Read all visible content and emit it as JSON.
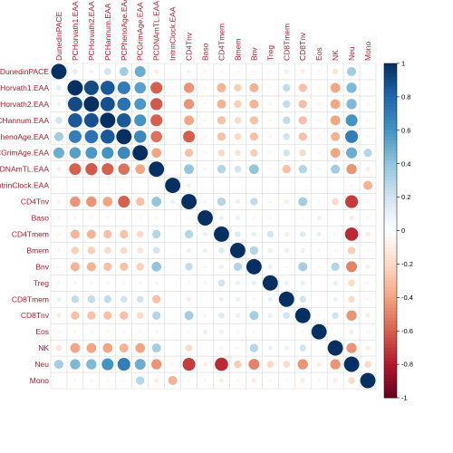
{
  "chart_data": {
    "type": "heatmap",
    "subtype": "correlation-circle",
    "labels": [
      "DunedinPACE",
      "PCHorvath1.EAA",
      "PCHorvath2.EAA",
      "PCHannum.EAA",
      "PCPhenoAge.EAA",
      "PCGrimAge.EAA",
      "PCDNAmTL.EAA",
      "IntrinClock.EAA",
      "CD4Tnv",
      "Baso",
      "CD4Tmem",
      "Bmem",
      "Bnv",
      "Treg",
      "CD8Tmem",
      "CD8Tnv",
      "Eos",
      "NK",
      "Neu",
      "Mono"
    ],
    "row_labels_visible": [
      "DunedinPACE",
      "CHorvath1.EAA",
      "CHorvath2.EAA",
      "CHannum.EAA",
      "PhenoAge.EAA",
      "CGrimAge.EAA",
      "CDNAmTL.EAA",
      "ntrinClock.EAA",
      "CD4Tnv",
      "Baso",
      "CD4Tmem",
      "Bmem",
      "Bnv",
      "Treg",
      "CD8Tmem",
      "CD8Tnv",
      "Eos",
      "NK",
      "Neu",
      "Mono"
    ],
    "matrix": [
      [
        1,
        0.12,
        0.08,
        0.2,
        0.35,
        0.5,
        -0.1,
        0,
        -0.08,
        -0.06,
        -0.05,
        -0.05,
        -0.05,
        -0.05,
        0.1,
        -0.1,
        -0.05,
        -0.15,
        0.35,
        0
      ],
      [
        0.12,
        1,
        0.9,
        0.85,
        0.7,
        0.55,
        -0.6,
        0,
        -0.45,
        -0.05,
        -0.35,
        -0.25,
        -0.35,
        -0.05,
        0.25,
        -0.3,
        -0.05,
        -0.4,
        0.45,
        -0.05
      ],
      [
        0.08,
        0.9,
        1,
        0.88,
        0.75,
        0.58,
        -0.62,
        0,
        -0.45,
        -0.05,
        -0.35,
        -0.25,
        -0.35,
        -0.05,
        0.25,
        -0.3,
        -0.05,
        -0.4,
        0.45,
        -0.05
      ],
      [
        0.2,
        0.85,
        0.88,
        1,
        0.85,
        0.6,
        -0.6,
        0,
        -0.4,
        -0.05,
        -0.3,
        -0.2,
        -0.3,
        -0.05,
        0.25,
        -0.3,
        -0.05,
        -0.4,
        0.6,
        -0.05
      ],
      [
        0.35,
        0.7,
        0.75,
        0.85,
        1,
        0.65,
        -0.55,
        0,
        -0.6,
        -0.05,
        -0.3,
        -0.2,
        -0.3,
        -0.05,
        0.2,
        -0.3,
        -0.05,
        -0.35,
        0.7,
        -0.05
      ],
      [
        0.5,
        0.55,
        0.58,
        0.6,
        0.65,
        1,
        -0.4,
        0,
        -0.3,
        -0.05,
        -0.2,
        -0.15,
        -0.25,
        -0.05,
        0.2,
        -0.2,
        -0.05,
        -0.4,
        0.5,
        0.3
      ],
      [
        -0.1,
        -0.6,
        -0.62,
        -0.6,
        -0.55,
        -0.4,
        1,
        0,
        0.4,
        0.05,
        0.3,
        0.2,
        0.4,
        0.05,
        -0.3,
        0.3,
        0.05,
        0.35,
        -0.45,
        -0.1
      ],
      [
        0,
        0,
        0,
        0,
        0,
        0,
        0,
        1,
        0.1,
        0,
        0,
        0,
        0,
        0,
        0,
        0,
        0,
        0,
        -0.05,
        -0.35
      ],
      [
        -0.08,
        -0.45,
        -0.45,
        -0.4,
        -0.6,
        -0.3,
        0.4,
        0.1,
        1,
        0.05,
        0.3,
        0.1,
        0.25,
        0.05,
        -0.1,
        0.35,
        0.05,
        -0.2,
        -0.7,
        -0.05
      ],
      [
        -0.06,
        -0.05,
        -0.05,
        -0.05,
        -0.05,
        -0.05,
        0.05,
        0,
        0.05,
        1,
        0.1,
        0.1,
        0.05,
        0.05,
        0,
        0.05,
        0.1,
        0,
        -0.1,
        -0.05
      ],
      [
        -0.05,
        -0.35,
        -0.35,
        -0.3,
        -0.3,
        -0.2,
        0.3,
        0,
        0.3,
        0.1,
        1,
        0.15,
        0.1,
        0.2,
        0.1,
        0.15,
        0.1,
        0.05,
        -0.75,
        -0.1
      ],
      [
        -0.05,
        -0.25,
        -0.25,
        -0.2,
        -0.2,
        -0.15,
        0.2,
        0,
        0.1,
        0.1,
        0.15,
        1,
        0.3,
        0.1,
        0.1,
        0.1,
        0.05,
        0.05,
        -0.25,
        -0.05
      ],
      [
        -0.05,
        -0.35,
        -0.35,
        -0.3,
        -0.3,
        -0.25,
        0.4,
        0,
        0.25,
        0.05,
        0.1,
        0.3,
        1,
        0.1,
        0.05,
        0.35,
        0.05,
        0.3,
        -0.5,
        -0.1
      ],
      [
        -0.05,
        -0.05,
        -0.05,
        -0.05,
        -0.05,
        -0.05,
        0.05,
        0,
        0.05,
        0.05,
        0.2,
        0.1,
        0.1,
        1,
        0.1,
        0.1,
        0,
        0.1,
        -0.2,
        -0.05
      ],
      [
        0.1,
        0.25,
        0.25,
        0.25,
        0.2,
        0.2,
        -0.3,
        0,
        -0.1,
        0,
        0.1,
        0.1,
        0.05,
        0.1,
        1,
        0.2,
        0,
        0.1,
        -0.2,
        -0.05
      ],
      [
        -0.1,
        -0.3,
        -0.3,
        -0.3,
        -0.3,
        -0.2,
        0.3,
        0,
        0.35,
        0.05,
        0.15,
        0.1,
        0.35,
        0.1,
        0.2,
        1,
        0.05,
        0.2,
        -0.45,
        -0.1
      ],
      [
        -0.05,
        -0.05,
        -0.05,
        -0.05,
        -0.05,
        -0.05,
        0.05,
        0,
        0.05,
        0.1,
        0.1,
        0.05,
        0.05,
        0,
        0,
        0.05,
        1,
        0,
        -0.1,
        -0.05
      ],
      [
        -0.15,
        -0.4,
        -0.4,
        -0.4,
        -0.35,
        -0.4,
        0.35,
        0,
        -0.2,
        0,
        0.05,
        0.05,
        0.3,
        0.1,
        0.1,
        0.2,
        0,
        1,
        -0.45,
        -0.1
      ],
      [
        0.35,
        0.45,
        0.45,
        0.6,
        0.7,
        0.5,
        -0.45,
        -0.05,
        -0.7,
        -0.1,
        -0.75,
        -0.25,
        -0.5,
        -0.2,
        -0.2,
        -0.45,
        -0.1,
        -0.45,
        1,
        -0.2
      ],
      [
        0,
        -0.05,
        -0.05,
        -0.05,
        -0.05,
        0.3,
        -0.1,
        -0.35,
        -0.05,
        -0.05,
        -0.1,
        -0.05,
        -0.1,
        -0.05,
        -0.05,
        -0.1,
        -0.05,
        -0.1,
        -0.2,
        1
      ]
    ],
    "colorbar": {
      "range": [
        -1,
        1
      ],
      "ticks": [
        "1",
        "0.8",
        "0.6",
        "0.4",
        "0.2",
        "0",
        "-0.2",
        "-0.4",
        "-0.6",
        "-0.8",
        "-1"
      ]
    },
    "colors": {
      "negative": "#67001f",
      "neutral": "#ffffff",
      "positive": "#053061",
      "label": "#b2182b",
      "grid": "#d9d9d9"
    }
  }
}
